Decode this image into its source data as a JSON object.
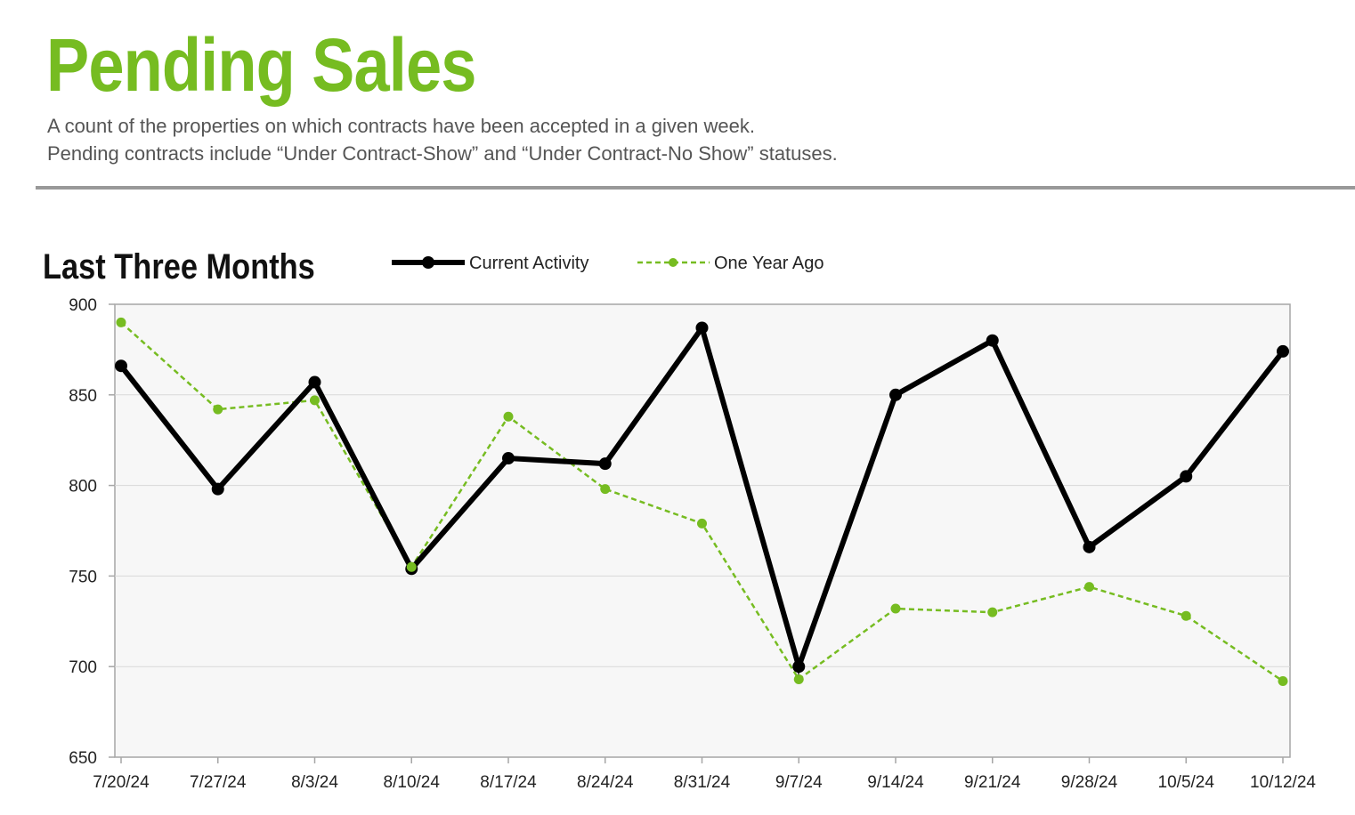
{
  "header": {
    "title": "Pending Sales",
    "description_line1": "A count of the properties on which contracts have been accepted in a given week.",
    "description_line2": "Pending contracts include “Under Contract-Show” and “Under Contract-No Show” statuses."
  },
  "section": {
    "title": "Last Three Months"
  },
  "colors": {
    "title_green": "#76bc21",
    "current_line": "#000000",
    "year_ago_line": "#76bc21",
    "plot_background": "#f7f7f7",
    "gridline": "#d9d9d9"
  },
  "chart_data": {
    "type": "line",
    "categories": [
      "7/20/24",
      "7/27/24",
      "8/3/24",
      "8/10/24",
      "8/17/24",
      "8/24/24",
      "8/31/24",
      "9/7/24",
      "9/14/24",
      "9/21/24",
      "9/28/24",
      "10/5/24",
      "10/12/24"
    ],
    "series": [
      {
        "name": "Current Activity",
        "values": [
          866,
          798,
          857,
          754,
          815,
          812,
          887,
          700,
          850,
          880,
          766,
          805,
          874
        ]
      },
      {
        "name": "One Year Ago",
        "values": [
          890,
          842,
          847,
          755,
          838,
          798,
          779,
          693,
          732,
          730,
          744,
          728,
          692
        ]
      }
    ],
    "ylim": [
      650,
      900
    ],
    "yticks": [
      900,
      850,
      800,
      750,
      700,
      650
    ],
    "grid": true,
    "legend_position": "top"
  }
}
